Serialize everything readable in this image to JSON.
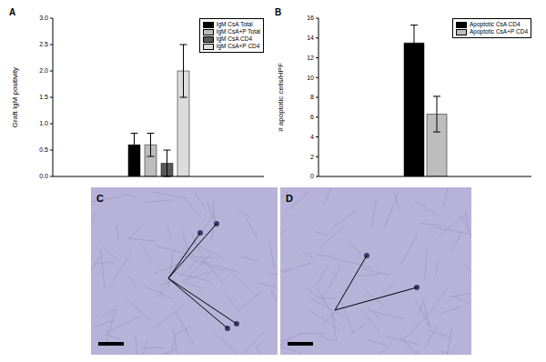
{
  "chart_data": [
    {
      "type": "bar",
      "title": "A",
      "y_label": "Graft IgM positivity",
      "categories": [
        null
      ],
      "ylim": [
        0,
        3
      ],
      "yticks": [
        {
          "value": 0,
          "label": "0.0"
        },
        {
          "value": 0.5,
          "label": "0.5"
        },
        {
          "value": 1,
          "label": "1.0"
        },
        {
          "value": 1.5,
          "label": "1.5"
        },
        {
          "value": 2,
          "label": "2.0"
        },
        {
          "value": 2.5,
          "label": "2.5"
        },
        {
          "value": 3,
          "label": "3.0"
        }
      ],
      "legend": "upper right",
      "grid": false,
      "tick_labels": "y",
      "series": [
        {
          "name": "IgM CsA Total",
          "color": "#000000",
          "values": [
            0.6
          ],
          "errors": [
            0.22
          ]
        },
        {
          "name": "IgM CsA+P Total",
          "color": "#bdbdbd",
          "values": [
            0.6
          ],
          "errors": [
            0.22
          ]
        },
        {
          "name": "IgM CsA CD4",
          "color": "#595959",
          "values": [
            0.25
          ],
          "errors": [
            0.25
          ]
        },
        {
          "name": "IgM CsA+P CD4",
          "color": "#dcdcdc",
          "values": [
            2.0
          ],
          "errors": [
            0.5
          ]
        }
      ]
    },
    {
      "type": "bar",
      "title": "B",
      "y_label": "# apoptotic cells/HPF",
      "categories": [
        null
      ],
      "ylim": [
        0,
        16
      ],
      "yticks": [
        0,
        2,
        4,
        6,
        8,
        10,
        12,
        14,
        16
      ],
      "legend": "upper right",
      "grid": false,
      "tick_labels": "y",
      "series": [
        {
          "name": "Apoptotic CsA CD4",
          "color": "#000000",
          "values": [
            13.5
          ],
          "errors": [
            1.8
          ]
        },
        {
          "name": "Apoptotic CsA+P CD4",
          "color": "#bdbdbd",
          "values": [
            6.3
          ],
          "errors": [
            1.8
          ]
        }
      ]
    }
  ],
  "panels": [
    {
      "label": "C"
    },
    {
      "label": "D"
    }
  ]
}
